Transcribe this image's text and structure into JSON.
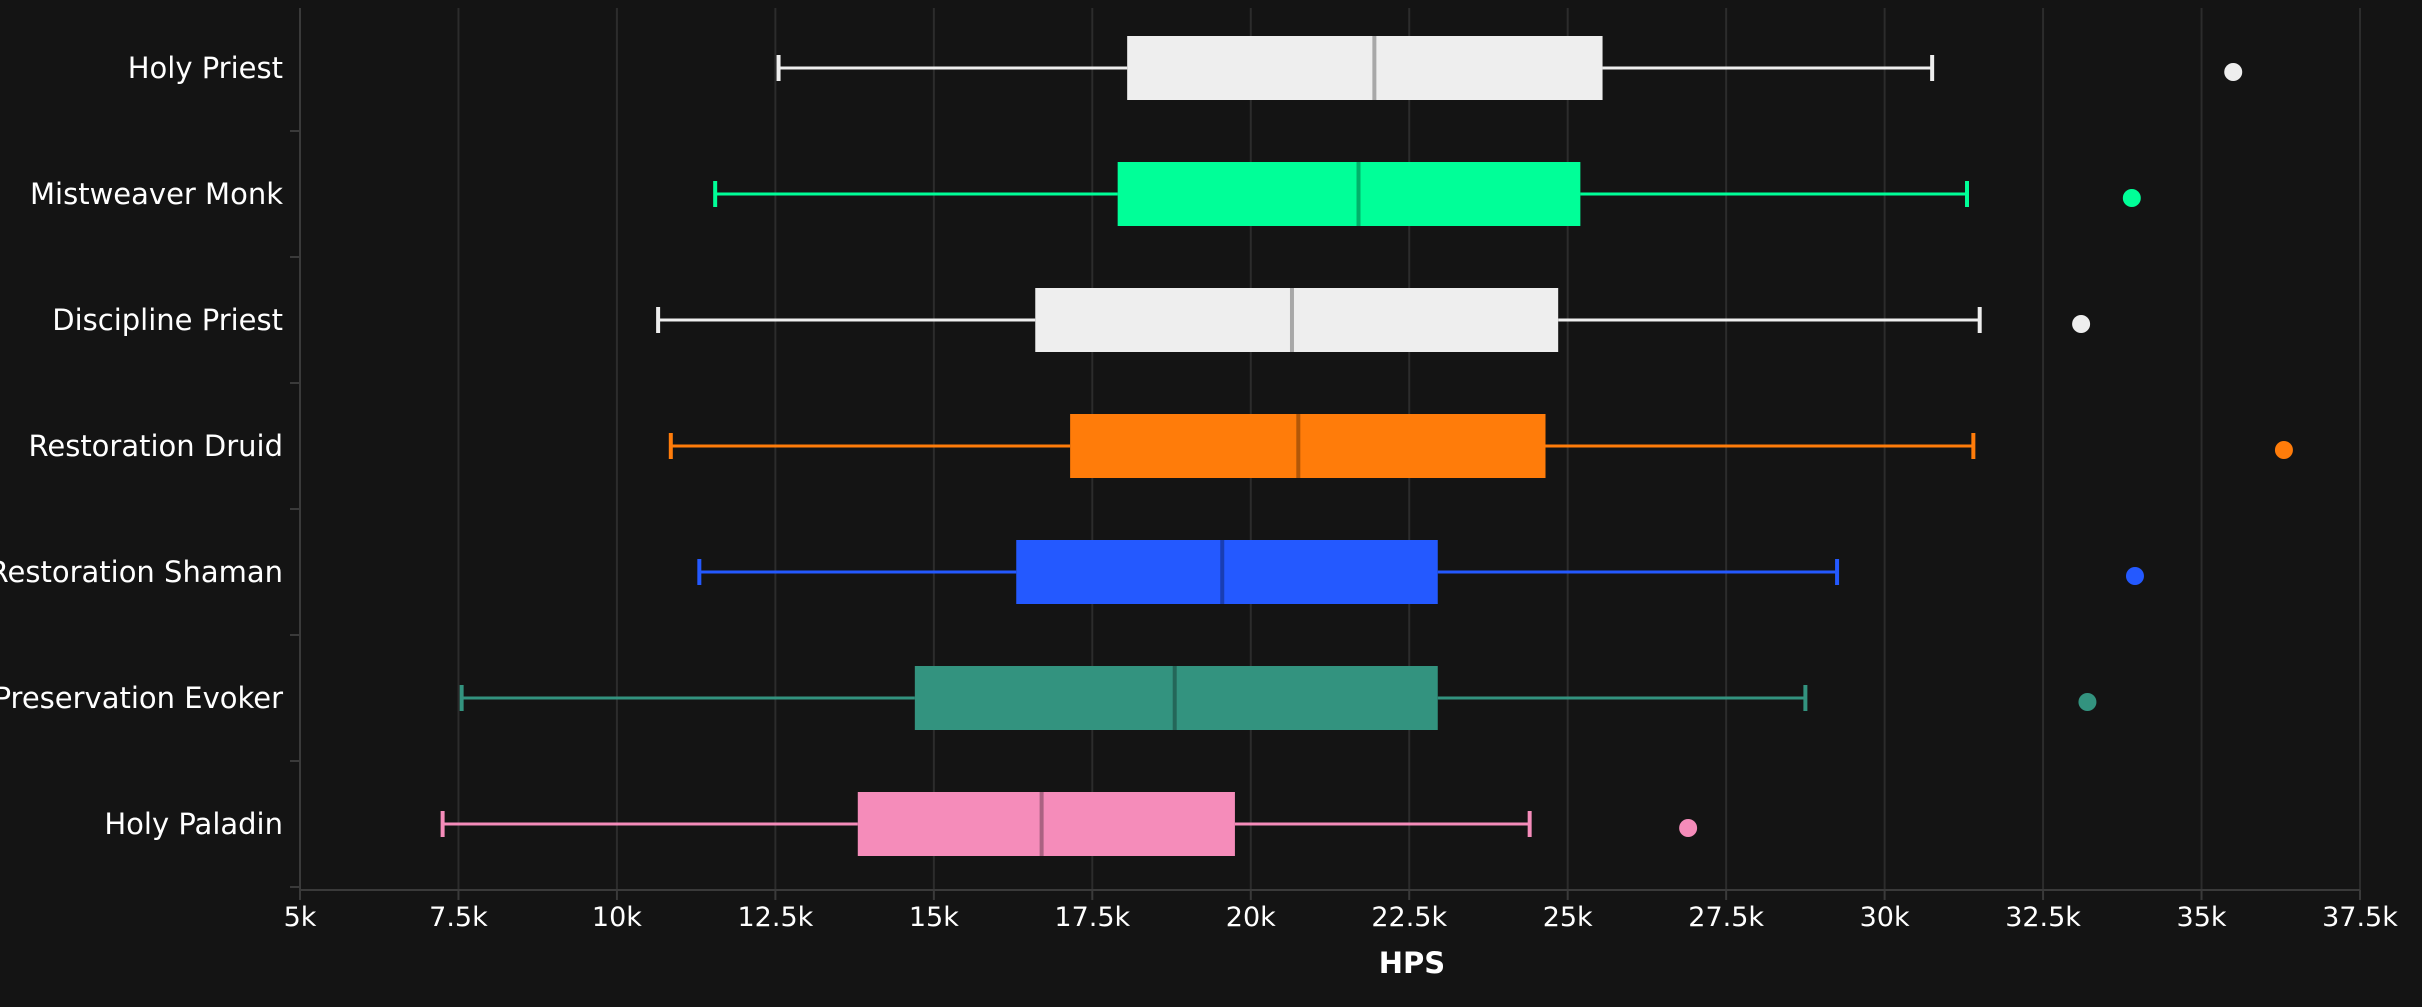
{
  "chart_data": {
    "type": "boxplot",
    "xlabel": "HPS",
    "ylabel": "",
    "xlim": [
      5000,
      37500
    ],
    "x_ticks": [
      5000,
      7500,
      10000,
      12500,
      15000,
      17500,
      20000,
      22500,
      25000,
      27500,
      30000,
      32500,
      35000,
      37500
    ],
    "x_tick_labels": [
      "5k",
      "7.5k",
      "10k",
      "12.5k",
      "15k",
      "17.5k",
      "20k",
      "22.5k",
      "25k",
      "27.5k",
      "30k",
      "32.5k",
      "35k",
      "37.5k"
    ],
    "grid": true,
    "orientation": "horizontal",
    "categories": [
      "Holy Priest",
      "Mistweaver Monk",
      "Discipline Priest",
      "Restoration Druid",
      "Restoration Shaman",
      "Preservation Evoker",
      "Holy Paladin"
    ],
    "series": [
      {
        "category": "Holy Priest",
        "color": "#eeeeee",
        "median_color": "#a8a8a8",
        "whisker_low": 12550,
        "q1": 18050,
        "median": 21950,
        "q3": 25550,
        "whisker_high": 30750,
        "outliers": [
          35500
        ]
      },
      {
        "category": "Mistweaver Monk",
        "color": "#00ff98",
        "median_color": "#00b36a",
        "whisker_low": 11550,
        "q1": 17900,
        "median": 21700,
        "q3": 25200,
        "whisker_high": 31300,
        "outliers": [
          33900
        ]
      },
      {
        "category": "Discipline Priest",
        "color": "#eeeeee",
        "median_color": "#a8a8a8",
        "whisker_low": 10650,
        "q1": 16600,
        "median": 20650,
        "q3": 24850,
        "whisker_high": 31500,
        "outliers": [
          33100
        ]
      },
      {
        "category": "Restoration Druid",
        "color": "#ff7c0a",
        "median_color": "#b35707",
        "whisker_low": 10850,
        "q1": 17150,
        "median": 20750,
        "q3": 24650,
        "whisker_high": 31400,
        "outliers": [
          36300
        ]
      },
      {
        "category": "Restoration Shaman",
        "color": "#2459ff",
        "median_color": "#193eb3",
        "whisker_low": 11300,
        "q1": 16300,
        "median": 19550,
        "q3": 22950,
        "whisker_high": 29250,
        "outliers": [
          33950
        ]
      },
      {
        "category": "Preservation Evoker",
        "color": "#33937f",
        "median_color": "#246759",
        "whisker_low": 7550,
        "q1": 14700,
        "median": 18800,
        "q3": 22950,
        "whisker_high": 28750,
        "outliers": [
          33200
        ]
      },
      {
        "category": "Holy Paladin",
        "color": "#f58cba",
        "median_color": "#ab6282",
        "whisker_low": 7250,
        "q1": 13800,
        "median": 16700,
        "q3": 19750,
        "whisker_high": 24400,
        "outliers": [
          26900
        ]
      }
    ],
    "colors": {
      "background": "#141414",
      "grid": "#2c2c2c",
      "axis": "#3a3a3a",
      "text": "#ffffff"
    }
  }
}
